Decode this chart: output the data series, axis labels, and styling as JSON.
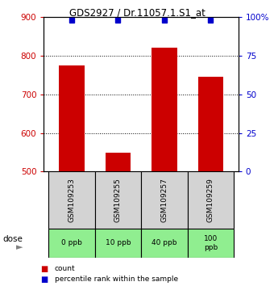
{
  "title": "GDS2927 / Dr.11057.1.S1_at",
  "samples": [
    "GSM109253",
    "GSM109255",
    "GSM109257",
    "GSM109259"
  ],
  "doses": [
    "0 ppb",
    "10 ppb",
    "40 ppb",
    "100\nppb"
  ],
  "bar_values": [
    775,
    548,
    822,
    745
  ],
  "percentile_values": [
    98,
    98,
    98,
    98
  ],
  "ylim_left": [
    500,
    900
  ],
  "ylim_right": [
    0,
    100
  ],
  "yticks_left": [
    500,
    600,
    700,
    800,
    900
  ],
  "yticks_right": [
    0,
    25,
    50,
    75,
    100
  ],
  "yticklabels_right": [
    "0",
    "25",
    "50",
    "75",
    "100%"
  ],
  "bar_color": "#cc0000",
  "percentile_color": "#0000cc",
  "dose_bg_color": "#90ee90",
  "sample_bg_color": "#d3d3d3",
  "left_tick_color": "#cc0000",
  "right_tick_color": "#0000cc",
  "bar_width": 0.55,
  "grid_lines": [
    600,
    700,
    800
  ],
  "fig_width": 3.4,
  "fig_height": 3.54,
  "dpi": 100
}
